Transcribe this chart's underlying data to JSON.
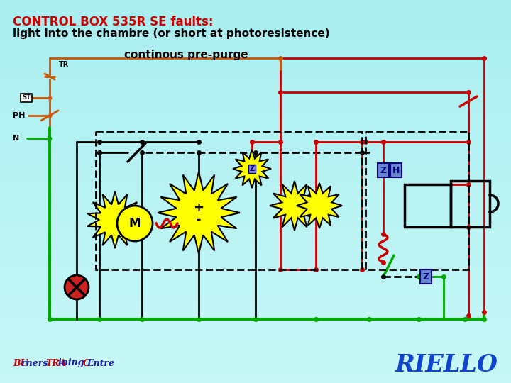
{
  "title_line1": "CONTROL BOX 535R SE faults:",
  "title_line2": "light into the chambre (or short at photoresistence)",
  "title_line3": "continous pre-purge",
  "title_color": "#cc0000",
  "title_line2_color": "#000000",
  "title_line3_color": "#000000",
  "bg_color_top": "#a8eef0",
  "bg_color_bot": "#c8f8f8",
  "footer_right": "RIELLO",
  "footer_right_color": "#1144cc"
}
